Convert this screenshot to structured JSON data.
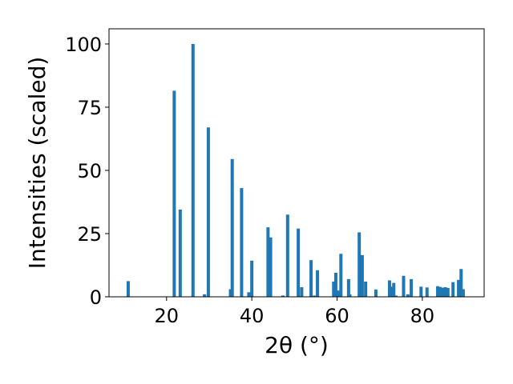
{
  "chart_data": {
    "type": "bar",
    "xlabel": "2θ (°)",
    "ylabel": "Intensities (scaled)",
    "xlim": [
      6.5,
      94.5
    ],
    "ylim": [
      0,
      106
    ],
    "xticks": [
      20,
      40,
      60,
      80
    ],
    "yticks": [
      0,
      25,
      50,
      75,
      100
    ],
    "bar_color": "#1f77b4",
    "x": [
      11.0,
      21.8,
      23.2,
      26.2,
      28.9,
      29.8,
      35.0,
      35.4,
      37.6,
      39.3,
      40.0,
      43.8,
      44.4,
      47.3,
      48.4,
      50.9,
      51.7,
      53.9,
      54.7,
      55.4,
      59.2,
      59.7,
      60.3,
      60.9,
      62.7,
      63.0,
      65.2,
      65.9,
      66.7,
      69.1,
      72.3,
      72.7,
      73.3,
      73.8,
      75.6,
      76.6,
      77.4,
      79.7,
      81.1,
      83.6,
      84.2,
      84.8,
      85.4,
      86.0,
      87.2,
      88.5,
      89.1,
      89.6
    ],
    "values": [
      6.2,
      81.5,
      34.5,
      100.0,
      1.0,
      67.0,
      3.0,
      54.5,
      43.0,
      1.8,
      14.3,
      27.5,
      23.5,
      0.5,
      32.5,
      27.0,
      3.8,
      14.5,
      0.5,
      10.5,
      6.0,
      9.5,
      2.5,
      17.0,
      7.0,
      1.0,
      25.5,
      16.5,
      6.0,
      2.9,
      6.5,
      4.0,
      5.5,
      0.5,
      8.3,
      1.0,
      7.0,
      4.0,
      3.7,
      4.2,
      3.9,
      3.6,
      3.8,
      3.5,
      5.8,
      6.7,
      11.0,
      3.0
    ]
  }
}
